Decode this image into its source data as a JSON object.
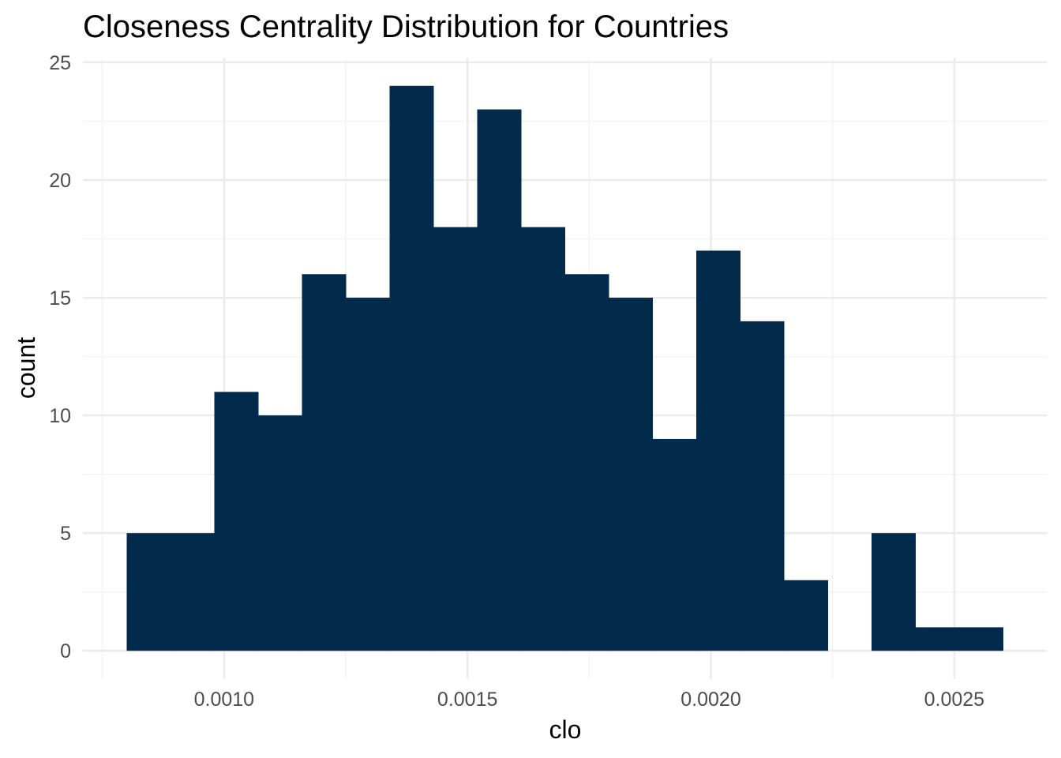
{
  "chart_data": {
    "type": "bar",
    "title": "Closeness Centrality Distribution for Countries",
    "xlabel": "clo",
    "ylabel": "count",
    "bin_width": 9.08e-05,
    "bins": [
      {
        "x_start": 0.0008,
        "x_end": 0.00089,
        "count": 5
      },
      {
        "x_start": 0.00089,
        "x_end": 0.00098,
        "count": 5
      },
      {
        "x_start": 0.00098,
        "x_end": 0.00107,
        "count": 11
      },
      {
        "x_start": 0.00107,
        "x_end": 0.00116,
        "count": 10
      },
      {
        "x_start": 0.00116,
        "x_end": 0.00125,
        "count": 16
      },
      {
        "x_start": 0.00125,
        "x_end": 0.00134,
        "count": 15
      },
      {
        "x_start": 0.00134,
        "x_end": 0.00143,
        "count": 24
      },
      {
        "x_start": 0.00143,
        "x_end": 0.00152,
        "count": 18
      },
      {
        "x_start": 0.00152,
        "x_end": 0.00161,
        "count": 23
      },
      {
        "x_start": 0.00161,
        "x_end": 0.0017,
        "count": 18
      },
      {
        "x_start": 0.0017,
        "x_end": 0.00179,
        "count": 16
      },
      {
        "x_start": 0.00179,
        "x_end": 0.00188,
        "count": 15
      },
      {
        "x_start": 0.00188,
        "x_end": 0.00197,
        "count": 9
      },
      {
        "x_start": 0.00197,
        "x_end": 0.00206,
        "count": 17
      },
      {
        "x_start": 0.00206,
        "x_end": 0.00215,
        "count": 14
      },
      {
        "x_start": 0.00215,
        "x_end": 0.00224,
        "count": 3
      },
      {
        "x_start": 0.00224,
        "x_end": 0.00233,
        "count": 0
      },
      {
        "x_start": 0.00233,
        "x_end": 0.00242,
        "count": 5
      },
      {
        "x_start": 0.00242,
        "x_end": 0.00251,
        "count": 1
      },
      {
        "x_start": 0.00251,
        "x_end": 0.0026,
        "count": 1
      }
    ],
    "x_ticks": [
      {
        "value": 0.001,
        "label": "0.0010"
      },
      {
        "value": 0.0015,
        "label": "0.0015"
      },
      {
        "value": 0.002,
        "label": "0.0020"
      },
      {
        "value": 0.0025,
        "label": "0.0025"
      }
    ],
    "x_minor_ticks": [
      0.00075,
      0.00125,
      0.00175,
      0.00225
    ],
    "y_ticks": [
      {
        "value": 0,
        "label": "0"
      },
      {
        "value": 5,
        "label": "5"
      },
      {
        "value": 10,
        "label": "10"
      },
      {
        "value": 15,
        "label": "15"
      },
      {
        "value": 20,
        "label": "20"
      },
      {
        "value": 25,
        "label": "25"
      }
    ],
    "y_minor_ticks": [
      2.5,
      7.5,
      12.5,
      17.5,
      22.5
    ],
    "xlim": [
      0.00071,
      0.00269
    ],
    "ylim": [
      -1.2,
      25.2
    ],
    "grid": true,
    "legend": "none",
    "bar_color": "#022a4a"
  }
}
